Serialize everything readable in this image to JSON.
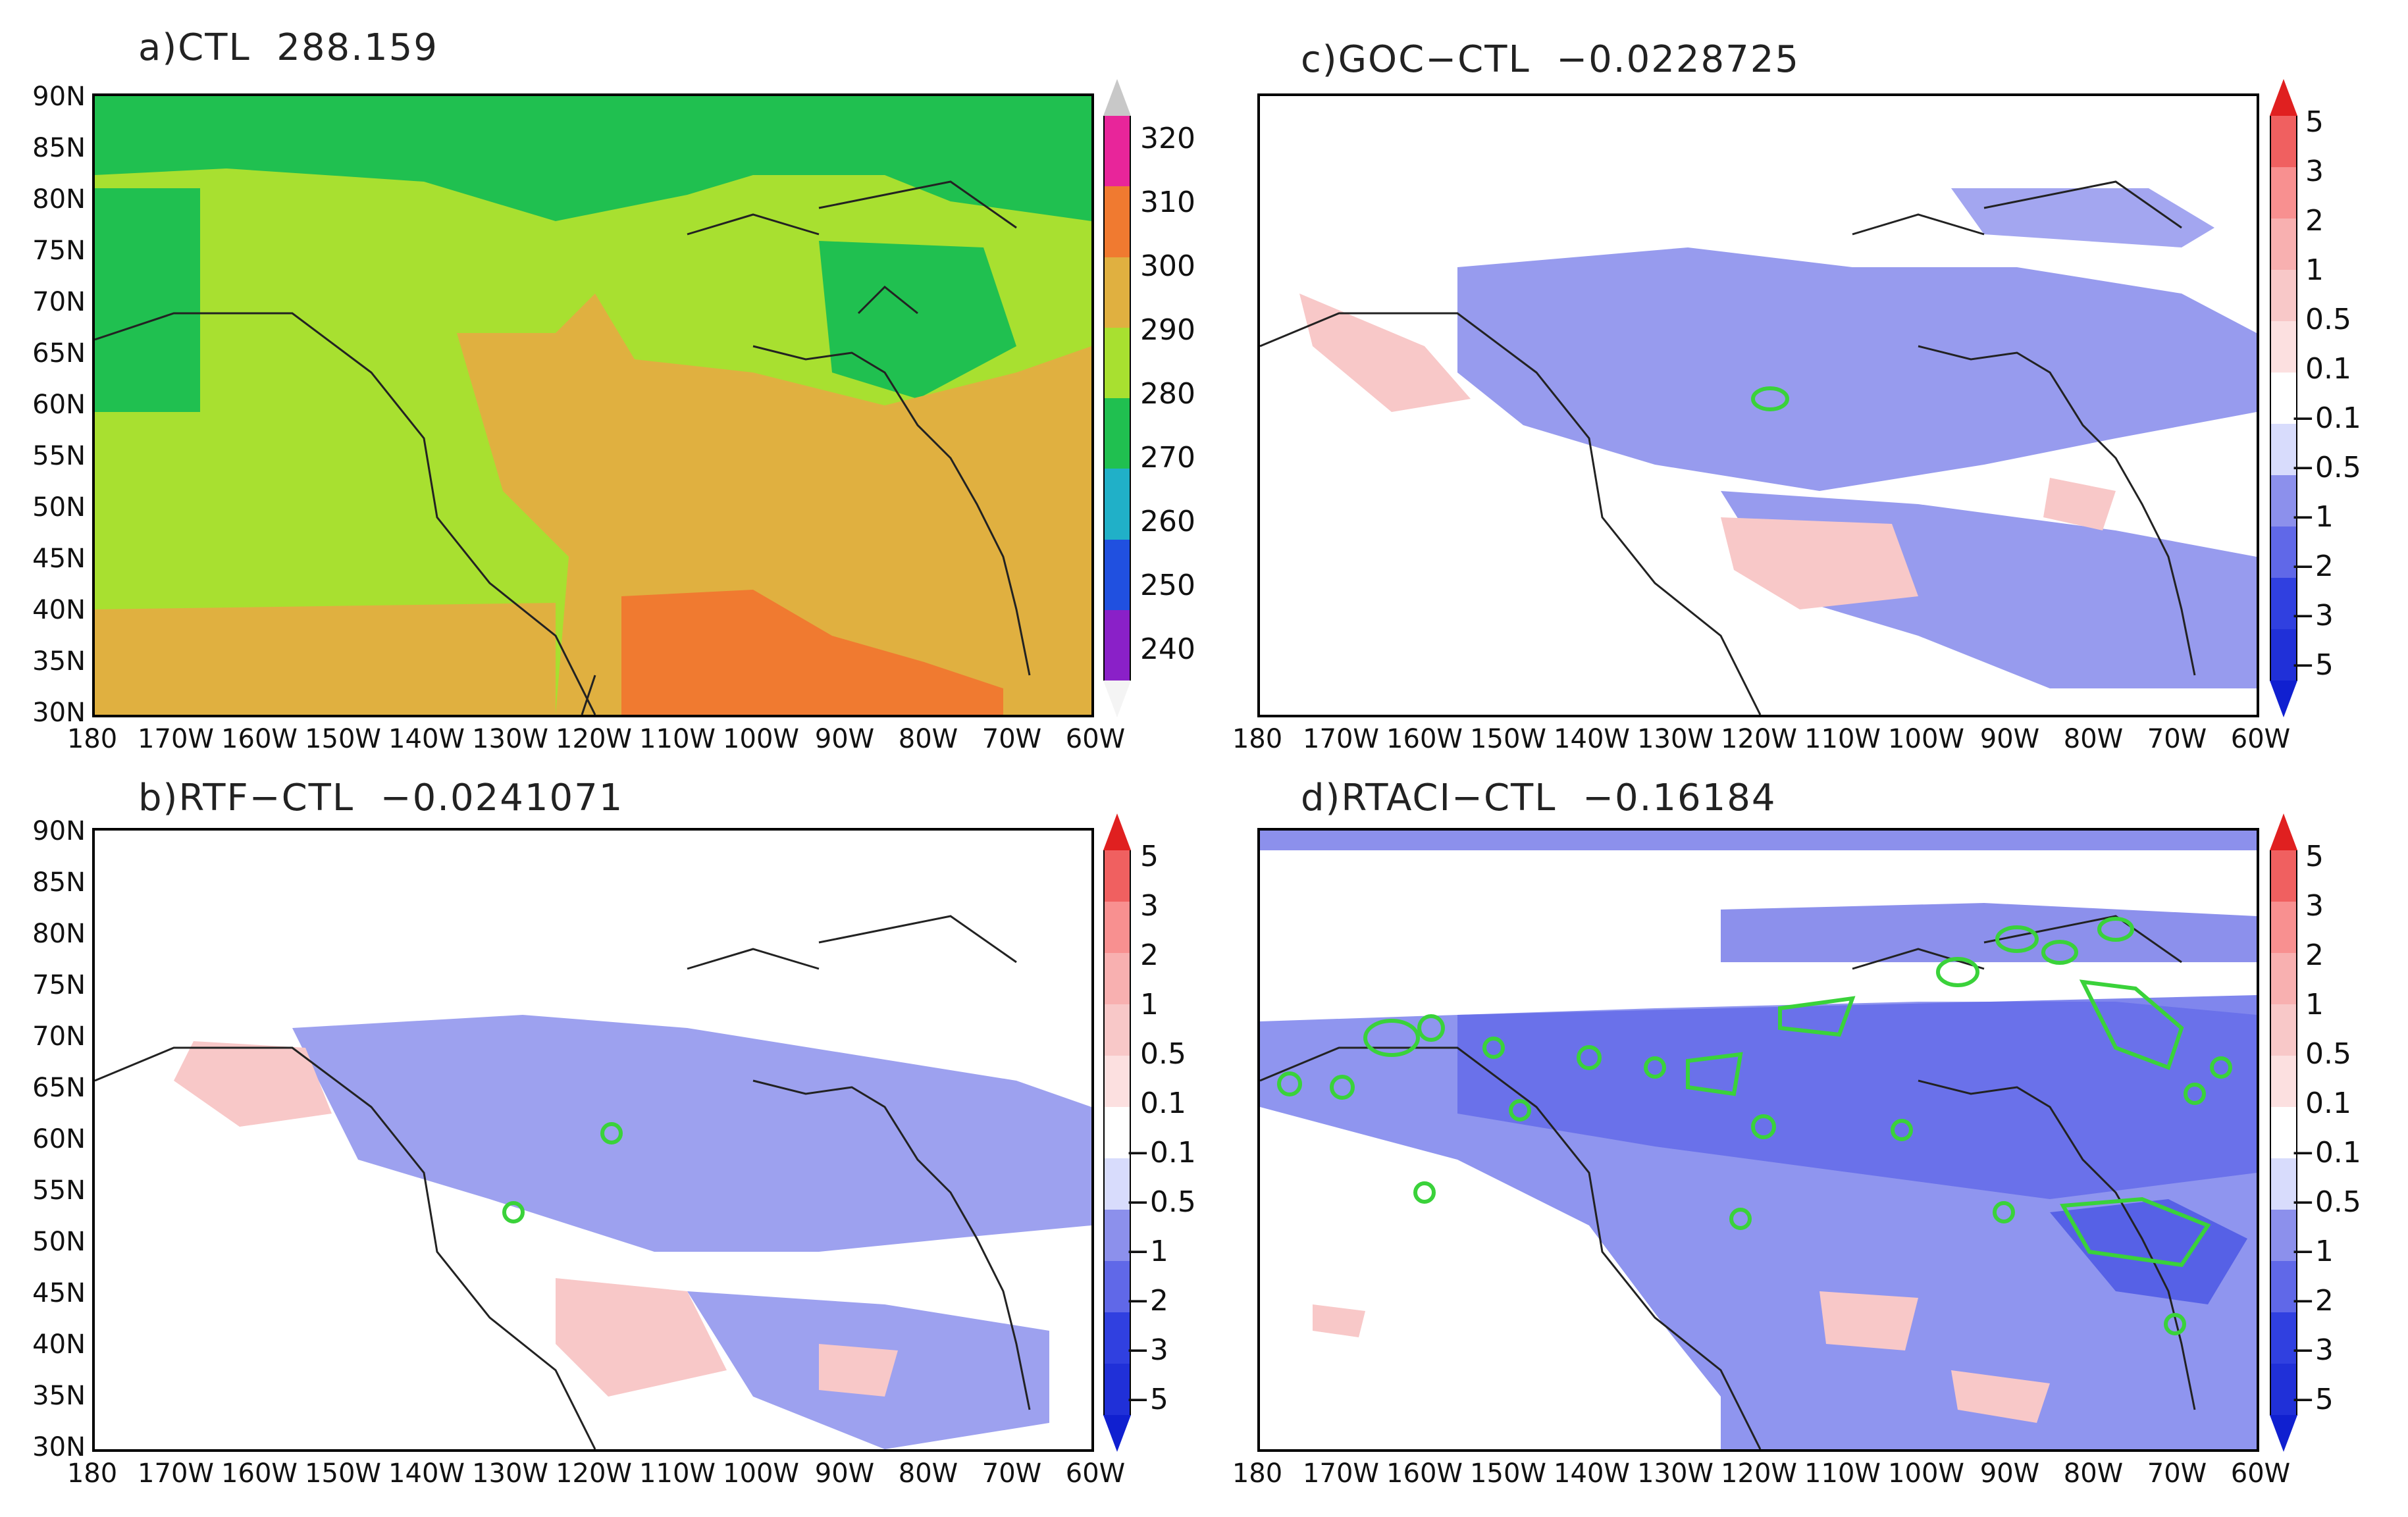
{
  "figure": {
    "panels": [
      {
        "id": "a",
        "title": "a)CTL  288.159",
        "lat_labels": [
          "90N",
          "85N",
          "80N",
          "75N",
          "70N",
          "65N",
          "60N",
          "55N",
          "50N",
          "45N",
          "40N",
          "35N",
          "30N"
        ],
        "lon_labels": [
          "180",
          "170W",
          "160W",
          "150W",
          "140W",
          "130W",
          "120W",
          "110W",
          "100W",
          "90W",
          "80W",
          "70W",
          "60W"
        ],
        "colorbar": {
          "labels": [
            "320",
            "310",
            "300",
            "290",
            "280",
            "270",
            "260",
            "250",
            "240"
          ],
          "colors": [
            "#c8c8c8",
            "#e8259a",
            "#f07a30",
            "#e0b040",
            "#a8e030",
            "#20c050",
            "#20b0c8",
            "#2050e0",
            "#8a20c8",
            "#ffffff"
          ]
        }
      },
      {
        "id": "b",
        "title": "b)RTF−CTL  −0.0241071",
        "lat_labels": [
          "90N",
          "85N",
          "80N",
          "75N",
          "70N",
          "65N",
          "60N",
          "55N",
          "50N",
          "45N",
          "40N",
          "35N",
          "30N"
        ],
        "lon_labels": [
          "180",
          "170W",
          "160W",
          "150W",
          "140W",
          "130W",
          "120W",
          "110W",
          "100W",
          "90W",
          "80W",
          "70W",
          "60W"
        ],
        "colorbar": {
          "labels": [
            "5",
            "3",
            "2",
            "1",
            "0.5",
            "0.1",
            "−0.1",
            "−0.5",
            "−1",
            "−2",
            "−3",
            "−5"
          ],
          "colors": [
            "#e02020",
            "#f06060",
            "#f89090",
            "#f8b0b0",
            "#f8c8c8",
            "#fce0e0",
            "#ffffff",
            "#d8dcfc",
            "#8c90ec",
            "#6068e8",
            "#3040e0",
            "#2030d8",
            "#1020d0"
          ]
        }
      },
      {
        "id": "c",
        "title": "c)GOC−CTL  −0.0228725",
        "lat_labels": [],
        "lon_labels": [
          "180",
          "170W",
          "160W",
          "150W",
          "140W",
          "130W",
          "120W",
          "110W",
          "100W",
          "90W",
          "80W",
          "70W",
          "60W"
        ],
        "colorbar": {
          "labels": [
            "5",
            "3",
            "2",
            "1",
            "0.5",
            "0.1",
            "−0.1",
            "−0.5",
            "−1",
            "−2",
            "−3",
            "−5"
          ],
          "colors": [
            "#e02020",
            "#f06060",
            "#f89090",
            "#f8b0b0",
            "#f8c8c8",
            "#fce0e0",
            "#ffffff",
            "#d8dcfc",
            "#8c90ec",
            "#6068e8",
            "#3040e0",
            "#2030d8",
            "#1020d0"
          ]
        }
      },
      {
        "id": "d",
        "title": "d)RTACI−CTL  −0.16184",
        "lat_labels": [],
        "lon_labels": [
          "180",
          "170W",
          "160W",
          "150W",
          "140W",
          "130W",
          "120W",
          "110W",
          "100W",
          "90W",
          "80W",
          "70W",
          "60W"
        ],
        "colorbar": {
          "labels": [
            "5",
            "3",
            "2",
            "1",
            "0.5",
            "0.1",
            "−0.1",
            "−0.5",
            "−1",
            "−2",
            "−3",
            "−5"
          ],
          "colors": [
            "#e02020",
            "#f06060",
            "#f89090",
            "#f8b0b0",
            "#f8c8c8",
            "#fce0e0",
            "#ffffff",
            "#d8dcfc",
            "#8c90ec",
            "#6068e8",
            "#3040e0",
            "#2030d8",
            "#1020d0"
          ]
        }
      }
    ]
  }
}
